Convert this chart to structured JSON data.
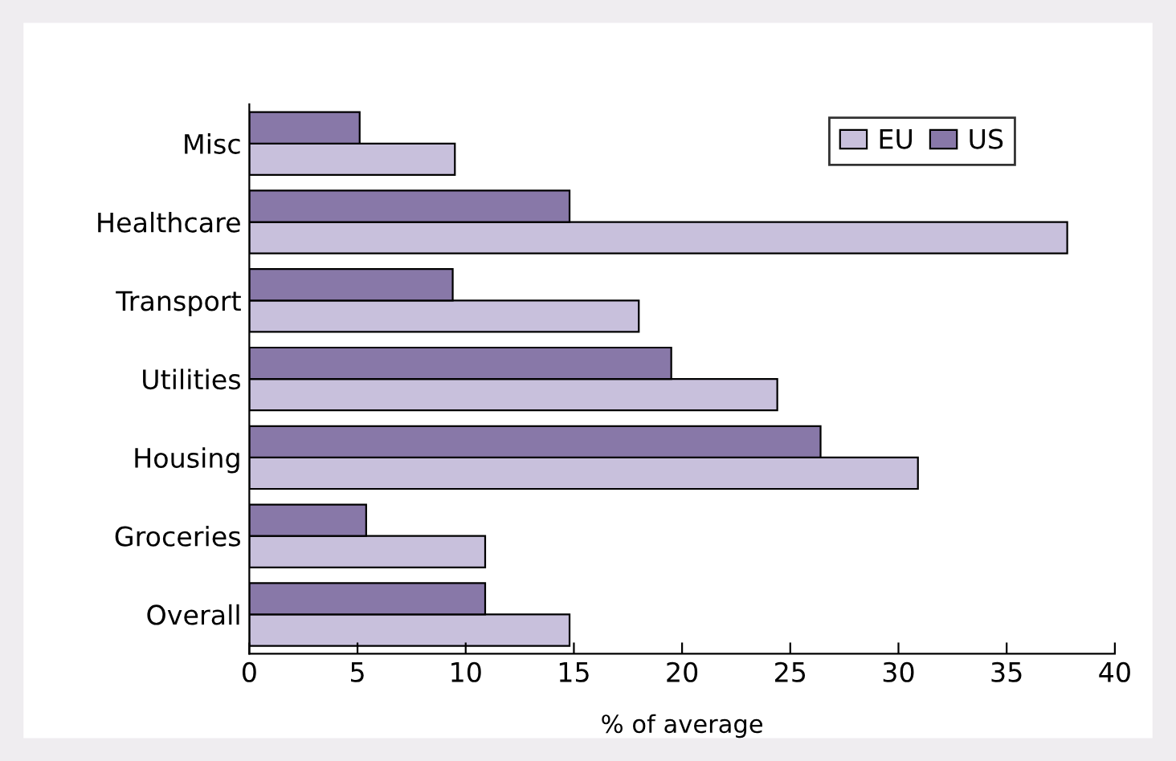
{
  "chart_data": {
    "type": "bar",
    "orientation": "horizontal",
    "xlabel": "% of average",
    "categories": [
      "Misc",
      "Healthcare",
      "Transport",
      "Utilities",
      "Housing",
      "Groceries",
      "Overall"
    ],
    "series": [
      {
        "name": "EU",
        "color": "#c8c0dc",
        "values": [
          9.5,
          37.8,
          18.0,
          24.4,
          30.9,
          10.9,
          14.8
        ]
      },
      {
        "name": "US",
        "color": "#8878a8",
        "values": [
          5.1,
          14.8,
          9.4,
          19.5,
          26.4,
          5.4,
          10.9
        ]
      }
    ],
    "xlim": [
      0,
      40
    ],
    "xticks": [
      0,
      5,
      10,
      15,
      20,
      25,
      30,
      35,
      40
    ],
    "grid": false,
    "legend": "top right"
  }
}
